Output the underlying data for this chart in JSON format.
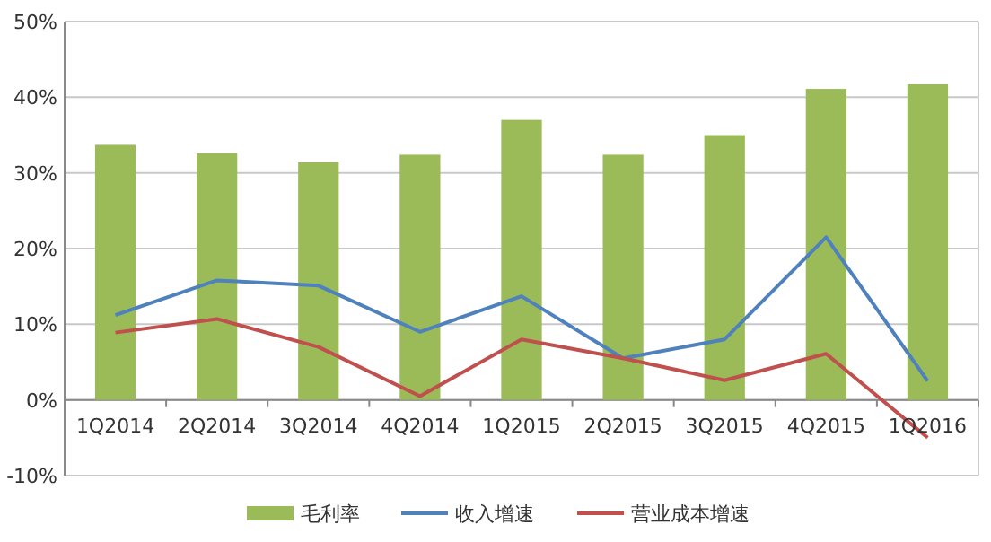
{
  "chart_data": {
    "type": "bar",
    "categories": [
      "1Q2014",
      "2Q2014",
      "3Q2014",
      "4Q2014",
      "1Q2015",
      "2Q2015",
      "3Q2015",
      "4Q2015",
      "1Q2016"
    ],
    "series": [
      {
        "name": "毛利率",
        "color": "#9bbb59",
        "values": [
          33.7,
          32.6,
          31.4,
          32.4,
          37.0,
          32.4,
          35.0,
          41.1,
          41.7
        ]
      },
      {
        "name": "收入增速",
        "type": "line",
        "color": "#4f81bd",
        "values": [
          11.2,
          15.8,
          15.1,
          9.0,
          13.7,
          5.5,
          8.0,
          21.5,
          2.5
        ]
      },
      {
        "name": "营业成本增速",
        "type": "line",
        "color": "#c0504d",
        "values": [
          8.9,
          10.7,
          7.0,
          0.5,
          8.0,
          5.5,
          2.6,
          6.1,
          -5.0
        ]
      }
    ],
    "ylim": [
      -10,
      50
    ],
    "yticks": [
      {
        "value": -10,
        "label": "-10%"
      },
      {
        "value": 0,
        "label": "0%"
      },
      {
        "value": 10,
        "label": "10%"
      },
      {
        "value": 20,
        "label": "20%"
      },
      {
        "value": 30,
        "label": "30%"
      },
      {
        "value": 40,
        "label": "40%"
      },
      {
        "value": 50,
        "label": "50%"
      }
    ],
    "grid": "y",
    "legend": "bottom",
    "marker": "none",
    "line_style": "solid"
  }
}
